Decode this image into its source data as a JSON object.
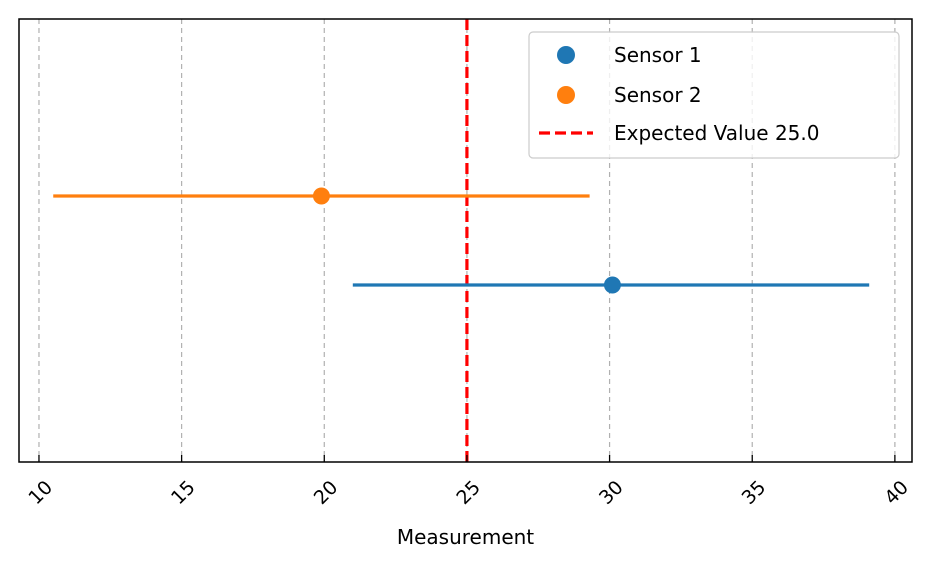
{
  "chart_data": {
    "type": "scatter",
    "title": "",
    "xlabel": "Measurement",
    "ylabel": "",
    "xlim": [
      9.3,
      40.6
    ],
    "xticks": [
      10,
      15,
      20,
      25,
      30,
      35,
      40
    ],
    "xtick_labels": [
      "10",
      "15",
      "20",
      "25",
      "30",
      "35",
      "40"
    ],
    "grid": "x-dashed",
    "legend_position": "top-right",
    "series": [
      {
        "name": "Sensor 1",
        "value": 30.1,
        "xerr_low": 21.0,
        "xerr_high": 39.1,
        "color": "#1f77b4"
      },
      {
        "name": "Sensor 2",
        "value": 19.9,
        "xerr_low": 10.5,
        "xerr_high": 29.3,
        "color": "#ff7f0e"
      }
    ],
    "reference_line": {
      "name": "Expected Value 25.0",
      "value": 25.0,
      "color": "#ff0000",
      "style": "dashed"
    }
  }
}
